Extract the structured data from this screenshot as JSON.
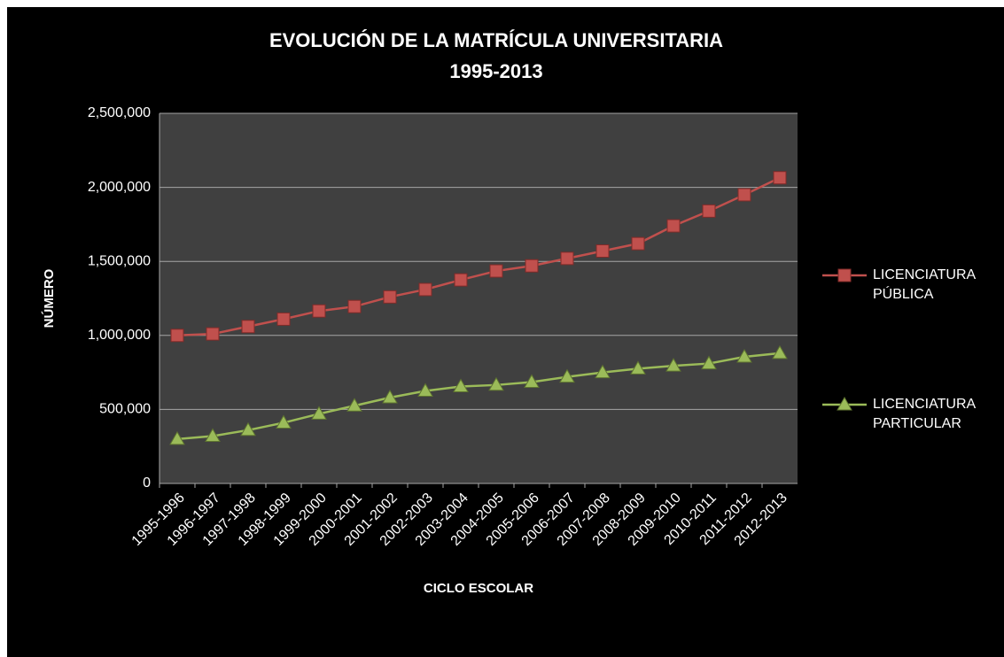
{
  "chart_data": {
    "type": "line",
    "title": "EVOLUCIÓN DE LA MATRÍCULA UNIVERSITARIA",
    "subtitle": "1995-2013",
    "x_label": "CICLO ESCOLAR",
    "y_label": "NÚMERO",
    "categories": [
      "1995-1996",
      "1996-1997",
      "1997-1998",
      "1998-1999",
      "1999-2000",
      "2000-2001",
      "2001-2002",
      "2002-2003",
      "2003-2004",
      "2004-2005",
      "2005-2006",
      "2006-2007",
      "2007-2008",
      "2008-2009",
      "2009-2010",
      "2010-2011",
      "2011-2012",
      "2012-2013"
    ],
    "series": [
      {
        "name": "LICENCIATURA PÚBLICA",
        "color": "#c0504d",
        "marker": "square",
        "values": [
          1000000,
          1010000,
          1060000,
          1110000,
          1165000,
          1195000,
          1260000,
          1310000,
          1375000,
          1435000,
          1470000,
          1520000,
          1570000,
          1620000,
          1740000,
          1840000,
          1950000,
          2065000
        ]
      },
      {
        "name": "LICENCIATURA PARTICULAR",
        "color": "#9bbb59",
        "marker": "triangle",
        "values": [
          300000,
          320000,
          360000,
          410000,
          470000,
          525000,
          580000,
          625000,
          655000,
          665000,
          685000,
          720000,
          750000,
          775000,
          795000,
          810000,
          855000,
          880000
        ]
      }
    ],
    "ylim": [
      0,
      2500000
    ],
    "yticks": [
      0,
      {
        "value": 500000,
        "label": "500,000"
      },
      {
        "value": 1000000,
        "label": "1,000,000"
      },
      {
        "value": 1500000,
        "label": "1,500,000"
      },
      {
        "value": 2000000,
        "label": "2,000,000"
      },
      {
        "value": 2500000,
        "label": "2,500,000"
      }
    ],
    "grid": true,
    "legend": "right"
  }
}
